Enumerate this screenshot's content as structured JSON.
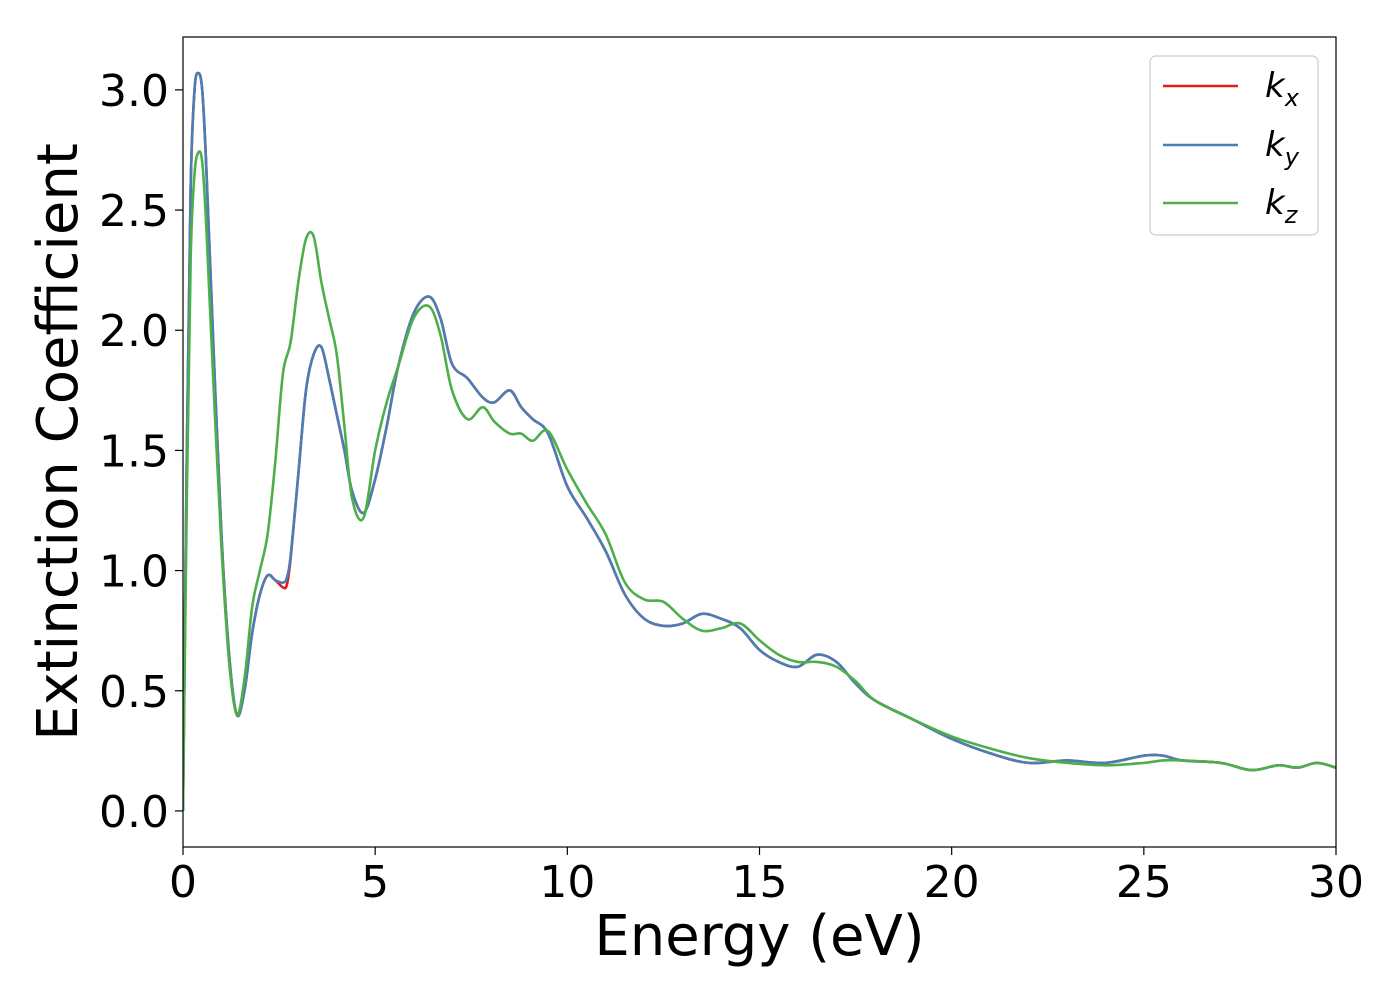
{
  "chart_data": {
    "type": "line",
    "title": "",
    "xlabel": "Energy (eV)",
    "ylabel": "Extinction Coefficient",
    "xlim": [
      0,
      30
    ],
    "ylim": [
      -0.15,
      3.22
    ],
    "xticks": [
      0,
      5,
      10,
      15,
      20,
      25,
      30
    ],
    "yticks": [
      0.0,
      0.5,
      1.0,
      1.5,
      2.0,
      2.5,
      3.0
    ],
    "xtick_labels": [
      "0",
      "5",
      "10",
      "15",
      "20",
      "25",
      "30"
    ],
    "ytick_labels": [
      "0.0",
      "0.5",
      "1.0",
      "1.5",
      "2.0",
      "2.5",
      "3.0"
    ],
    "grid": false,
    "legend_position": "top-right",
    "series": [
      {
        "name": "k_x",
        "label_main": "k",
        "label_sub": "x",
        "color": "#e41a1c",
        "x": [
          0,
          0.1,
          0.2,
          0.3,
          0.4,
          0.5,
          0.6,
          0.8,
          1.0,
          1.2,
          1.4,
          1.6,
          1.8,
          2.0,
          2.2,
          2.4,
          2.6,
          2.7,
          2.8,
          3.0,
          3.2,
          3.4,
          3.6,
          3.8,
          4.0,
          4.2,
          4.4,
          4.7,
          5.0,
          5.3,
          5.6,
          6.0,
          6.4,
          6.7,
          7.0,
          7.4,
          7.8,
          8.1,
          8.5,
          8.8,
          9.1,
          9.5,
          10.0,
          10.5,
          11.0,
          11.5,
          12.0,
          12.5,
          13.0,
          13.5,
          14.0,
          14.5,
          15.0,
          15.5,
          16.0,
          16.5,
          17.0,
          17.5,
          18.0,
          19.0,
          20.0,
          21.0,
          22.0,
          23.0,
          24.0,
          25.0,
          25.5,
          26.0,
          27.0,
          27.8,
          28.5,
          29.0,
          29.5,
          30.0
        ],
        "y": [
          0.0,
          1.5,
          2.6,
          3.0,
          3.07,
          3.0,
          2.7,
          1.9,
          1.15,
          0.65,
          0.4,
          0.5,
          0.74,
          0.9,
          0.98,
          0.96,
          0.93,
          0.94,
          1.05,
          1.4,
          1.75,
          1.9,
          1.93,
          1.8,
          1.65,
          1.5,
          1.33,
          1.24,
          1.38,
          1.6,
          1.85,
          2.07,
          2.14,
          2.05,
          1.86,
          1.8,
          1.72,
          1.7,
          1.75,
          1.68,
          1.63,
          1.57,
          1.35,
          1.22,
          1.08,
          0.9,
          0.8,
          0.77,
          0.78,
          0.82,
          0.8,
          0.76,
          0.67,
          0.62,
          0.6,
          0.65,
          0.62,
          0.53,
          0.46,
          0.38,
          0.3,
          0.24,
          0.2,
          0.21,
          0.2,
          0.23,
          0.23,
          0.21,
          0.2,
          0.17,
          0.19,
          0.18,
          0.2,
          0.18
        ]
      },
      {
        "name": "k_y",
        "label_main": "k",
        "label_sub": "y",
        "color": "#4a7fb5",
        "x": [
          0,
          0.1,
          0.2,
          0.3,
          0.4,
          0.5,
          0.6,
          0.8,
          1.0,
          1.2,
          1.4,
          1.6,
          1.8,
          2.0,
          2.2,
          2.4,
          2.6,
          2.7,
          2.8,
          3.0,
          3.2,
          3.4,
          3.6,
          3.8,
          4.0,
          4.2,
          4.4,
          4.7,
          5.0,
          5.3,
          5.6,
          6.0,
          6.4,
          6.7,
          7.0,
          7.4,
          7.8,
          8.1,
          8.5,
          8.8,
          9.1,
          9.5,
          10.0,
          10.5,
          11.0,
          11.5,
          12.0,
          12.5,
          13.0,
          13.5,
          14.0,
          14.5,
          15.0,
          15.5,
          16.0,
          16.5,
          17.0,
          17.5,
          18.0,
          19.0,
          20.0,
          21.0,
          22.0,
          23.0,
          24.0,
          25.0,
          25.5,
          26.0,
          27.0,
          27.8,
          28.5,
          29.0,
          29.5,
          30.0
        ],
        "y": [
          0.0,
          1.5,
          2.6,
          3.0,
          3.07,
          3.0,
          2.7,
          1.9,
          1.15,
          0.65,
          0.4,
          0.5,
          0.74,
          0.9,
          0.98,
          0.96,
          0.95,
          0.97,
          1.06,
          1.4,
          1.75,
          1.9,
          1.93,
          1.8,
          1.65,
          1.5,
          1.33,
          1.24,
          1.38,
          1.6,
          1.85,
          2.07,
          2.14,
          2.05,
          1.86,
          1.8,
          1.72,
          1.7,
          1.75,
          1.68,
          1.63,
          1.57,
          1.35,
          1.22,
          1.08,
          0.9,
          0.8,
          0.77,
          0.78,
          0.82,
          0.8,
          0.76,
          0.67,
          0.62,
          0.6,
          0.65,
          0.62,
          0.53,
          0.46,
          0.38,
          0.3,
          0.24,
          0.2,
          0.21,
          0.2,
          0.23,
          0.23,
          0.21,
          0.2,
          0.17,
          0.19,
          0.18,
          0.2,
          0.18
        ]
      },
      {
        "name": "k_z",
        "label_main": "k",
        "label_sub": "z",
        "color": "#4daf4a",
        "x": [
          0,
          0.1,
          0.2,
          0.3,
          0.4,
          0.5,
          0.6,
          0.8,
          1.0,
          1.2,
          1.4,
          1.6,
          1.8,
          2.0,
          2.2,
          2.4,
          2.6,
          2.8,
          3.0,
          3.2,
          3.4,
          3.6,
          3.8,
          4.0,
          4.2,
          4.4,
          4.7,
          5.0,
          5.3,
          5.6,
          6.0,
          6.4,
          6.7,
          7.0,
          7.4,
          7.8,
          8.1,
          8.5,
          8.8,
          9.1,
          9.5,
          10.0,
          10.5,
          11.0,
          11.5,
          12.0,
          12.5,
          13.0,
          13.5,
          14.0,
          14.5,
          15.0,
          15.5,
          16.0,
          16.5,
          17.0,
          17.5,
          18.0,
          19.0,
          20.0,
          21.0,
          22.0,
          23.0,
          24.0,
          25.0,
          25.5,
          26.0,
          27.0,
          27.8,
          28.5,
          29.0,
          29.5,
          30.0
        ],
        "y": [
          0.0,
          1.3,
          2.3,
          2.65,
          2.74,
          2.7,
          2.45,
          1.75,
          1.1,
          0.62,
          0.4,
          0.55,
          0.85,
          1.0,
          1.15,
          1.45,
          1.82,
          1.95,
          2.2,
          2.38,
          2.39,
          2.2,
          2.05,
          1.9,
          1.6,
          1.3,
          1.22,
          1.5,
          1.7,
          1.85,
          2.05,
          2.1,
          1.98,
          1.75,
          1.63,
          1.68,
          1.62,
          1.57,
          1.57,
          1.54,
          1.58,
          1.42,
          1.28,
          1.15,
          0.95,
          0.88,
          0.87,
          0.8,
          0.75,
          0.76,
          0.78,
          0.71,
          0.65,
          0.62,
          0.62,
          0.6,
          0.54,
          0.46,
          0.38,
          0.31,
          0.26,
          0.22,
          0.2,
          0.19,
          0.2,
          0.21,
          0.21,
          0.2,
          0.17,
          0.19,
          0.18,
          0.2,
          0.18
        ]
      }
    ]
  }
}
